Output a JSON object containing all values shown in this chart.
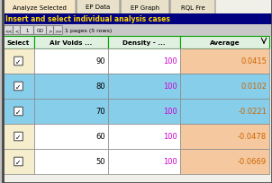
{
  "tabs": [
    "Analyze Selected",
    "EP Data",
    "EP Graph",
    "RQL Fre"
  ],
  "active_tab_bg": "#F5E6C8",
  "tab_bg": "#E8E0C8",
  "tab_border": "#888888",
  "header_bg": "#000080",
  "header_text_color": "#FFD700",
  "header_label": "Insert and select individual analysis cases",
  "nav_bar_bg": "#C8C8C8",
  "nav_text": "1 pages (5 rows)",
  "col_headers": [
    "Select",
    "Air Voids ...",
    "Density - ...",
    "Average"
  ],
  "col_header_bg": "#E0F0E0",
  "col_header_border": "#00A000",
  "rows": [
    {
      "air_voids": 90,
      "density": 100,
      "average": "0.0415",
      "row_bg": "#FFFFFF",
      "sel_bg": "#F5EDCC",
      "avg_bg": "#F5C8A0"
    },
    {
      "air_voids": 80,
      "density": 100,
      "average": "0.0102",
      "row_bg": "#87CEEB",
      "sel_bg": "#87CEEB",
      "avg_bg": "#87CEEB"
    },
    {
      "air_voids": 70,
      "density": 100,
      "average": "-0.0221",
      "row_bg": "#87CEEB",
      "sel_bg": "#87CEEB",
      "avg_bg": "#87CEEB"
    },
    {
      "air_voids": 60,
      "density": 100,
      "average": "-0.0478",
      "row_bg": "#FFFFFF",
      "sel_bg": "#F5EDCC",
      "avg_bg": "#F5C8A0"
    },
    {
      "air_voids": 50,
      "density": 100,
      "average": "-0.0669",
      "row_bg": "#FFFFFF",
      "sel_bg": "#F5EDCC",
      "avg_bg": "#F5C8A0"
    }
  ],
  "density_text_color": "#CC00CC",
  "avg_color_pos": "#CC6600",
  "avg_color_neg": "#CC6600",
  "border_color": "#888888",
  "body_bg": "#C0C0C0",
  "left_border_color": "#555555"
}
